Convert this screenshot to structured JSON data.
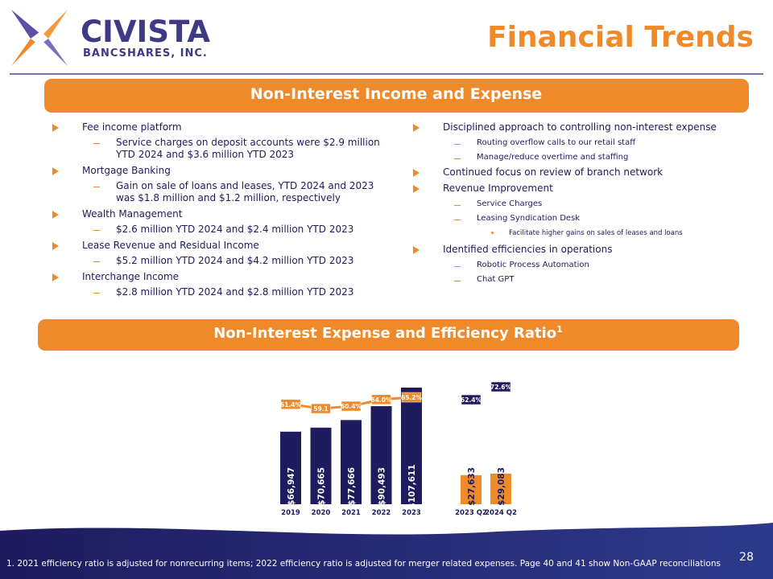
{
  "header": {
    "logo_name": "CIVISTA",
    "logo_sub": "BANCSHARES, INC.",
    "title": "Financial Trends"
  },
  "section1": {
    "title": "Non-Interest Income and Expense",
    "left": [
      {
        "text": "Fee income platform",
        "sub": [
          {
            "text": "Service charges on deposit accounts were $2.9 million YTD 2024 and $3.6 million YTD 2023"
          }
        ]
      },
      {
        "text": "Mortgage Banking",
        "sub": [
          {
            "text": "Gain on sale of loans and leases, YTD 2024 and 2023 was $1.8 million and $1.2 million, respectively"
          }
        ]
      },
      {
        "text": "Wealth Management",
        "sub": [
          {
            "text": "$2.6 million YTD 2024 and $2.4 million YTD 2023"
          }
        ]
      },
      {
        "text": "Lease Revenue and Residual Income",
        "sub": [
          {
            "text": "$5.2 million YTD 2024 and $4.2 million YTD 2023"
          }
        ]
      },
      {
        "text": "Interchange Income",
        "sub": [
          {
            "text": "$2.8 million YTD 2024 and $2.8 million YTD 2023"
          }
        ]
      }
    ],
    "right": [
      {
        "text": "Disciplined approach to controlling non-interest expense",
        "sub": [
          {
            "text": "Routing overflow calls to our retail staff"
          },
          {
            "text": "Manage/reduce overtime and staffing"
          }
        ]
      },
      {
        "text": "Continued focus on review of branch network"
      },
      {
        "text": "Revenue Improvement",
        "sub": [
          {
            "text": "Service Charges"
          },
          {
            "text": "Leasing Syndication Desk",
            "sub": [
              {
                "text": "Facilitate higher gains on sales of leases and loans"
              }
            ]
          }
        ]
      },
      {
        "text": "Identified efficiencies in operations",
        "sub": [
          {
            "text": "Robotic Process Automation"
          },
          {
            "text": "Chat GPT"
          }
        ]
      }
    ]
  },
  "section2": {
    "title": "Non-Interest Expense and Efficiency Ratio",
    "title_note": "1"
  },
  "chart_data": [
    {
      "type": "combo",
      "categories": [
        "2019",
        "2020",
        "2021",
        "2022",
        "2023"
      ],
      "series": [
        {
          "kind": "bar",
          "color": "#1e1b5e",
          "values": [
            66947,
            70665,
            77666,
            90493,
            107611
          ],
          "value_labels": [
            "$66,947",
            "$70,665",
            "$77,666",
            "$90,493",
            "$107,611"
          ]
        },
        {
          "kind": "line",
          "color": "#ef8a2b",
          "values": [
            61.4,
            59.1,
            60.4,
            64.0,
            65.2
          ],
          "value_labels": [
            "61.4%",
            "59.1",
            "60.4%",
            "64.0%",
            "65.2%"
          ]
        }
      ]
    },
    {
      "type": "combo",
      "categories": [
        "2023 Q2",
        "2024 Q2"
      ],
      "series": [
        {
          "kind": "bar",
          "color": "#ef8a2b",
          "values": [
            27633,
            29083
          ],
          "value_labels": [
            "$27,633",
            "$29,083"
          ]
        },
        {
          "kind": "label",
          "color": "#1e1b5e",
          "values": [
            62.4,
            72.6
          ],
          "value_labels": [
            "62.4%",
            "72.6%"
          ]
        }
      ]
    }
  ],
  "footnote": "1. 2021 efficiency ratio is adjusted for nonrecurring items; 2022 efficiency ratio is adjusted for merger related expenses. Page 40 and 41 show Non-GAAP reconciliations",
  "page": "28"
}
